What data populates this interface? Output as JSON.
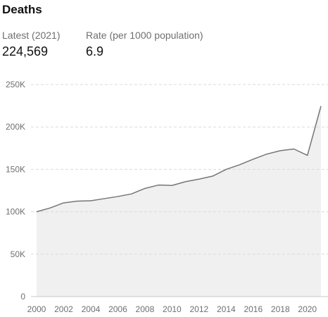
{
  "header": {
    "title": "Deaths"
  },
  "stats": {
    "latest_label": "Latest (2021)",
    "latest_value": "224,569",
    "rate_label": "Rate (per 1000 population)",
    "rate_value": "6.9"
  },
  "colors": {
    "line": "#767676",
    "area": "#f0f0f0",
    "grid": "#d9d9d9",
    "baseline": "#c8c8c8"
  },
  "chart_data": {
    "type": "area",
    "title": "",
    "xlabel": "",
    "ylabel": "",
    "x": [
      2000,
      2001,
      2002,
      2003,
      2004,
      2005,
      2006,
      2007,
      2008,
      2009,
      2010,
      2011,
      2012,
      2013,
      2014,
      2015,
      2016,
      2017,
      2018,
      2019,
      2020,
      2021
    ],
    "series": [
      {
        "values": [
          100000,
          104500,
          110500,
          112500,
          113000,
          115500,
          118000,
          121000,
          127500,
          131500,
          131000,
          135500,
          138500,
          142000,
          150000,
          155500,
          162000,
          168000,
          172000,
          174000,
          166500,
          224569
        ]
      }
    ],
    "xlim": [
      2000,
      2021
    ],
    "ylim": [
      0,
      250000
    ],
    "y_ticks": [
      0,
      50000,
      100000,
      150000,
      200000,
      250000
    ],
    "y_tick_labels": [
      "0",
      "50K",
      "100K",
      "150K",
      "200K",
      "250K"
    ],
    "x_ticks": [
      2000,
      2002,
      2004,
      2006,
      2008,
      2010,
      2012,
      2014,
      2016,
      2018,
      2020
    ],
    "x_tick_labels": [
      "2000",
      "2002",
      "2004",
      "2006",
      "2008",
      "2010",
      "2012",
      "2014",
      "2016",
      "2018",
      "2020"
    ],
    "grid": true,
    "legend": "none"
  }
}
